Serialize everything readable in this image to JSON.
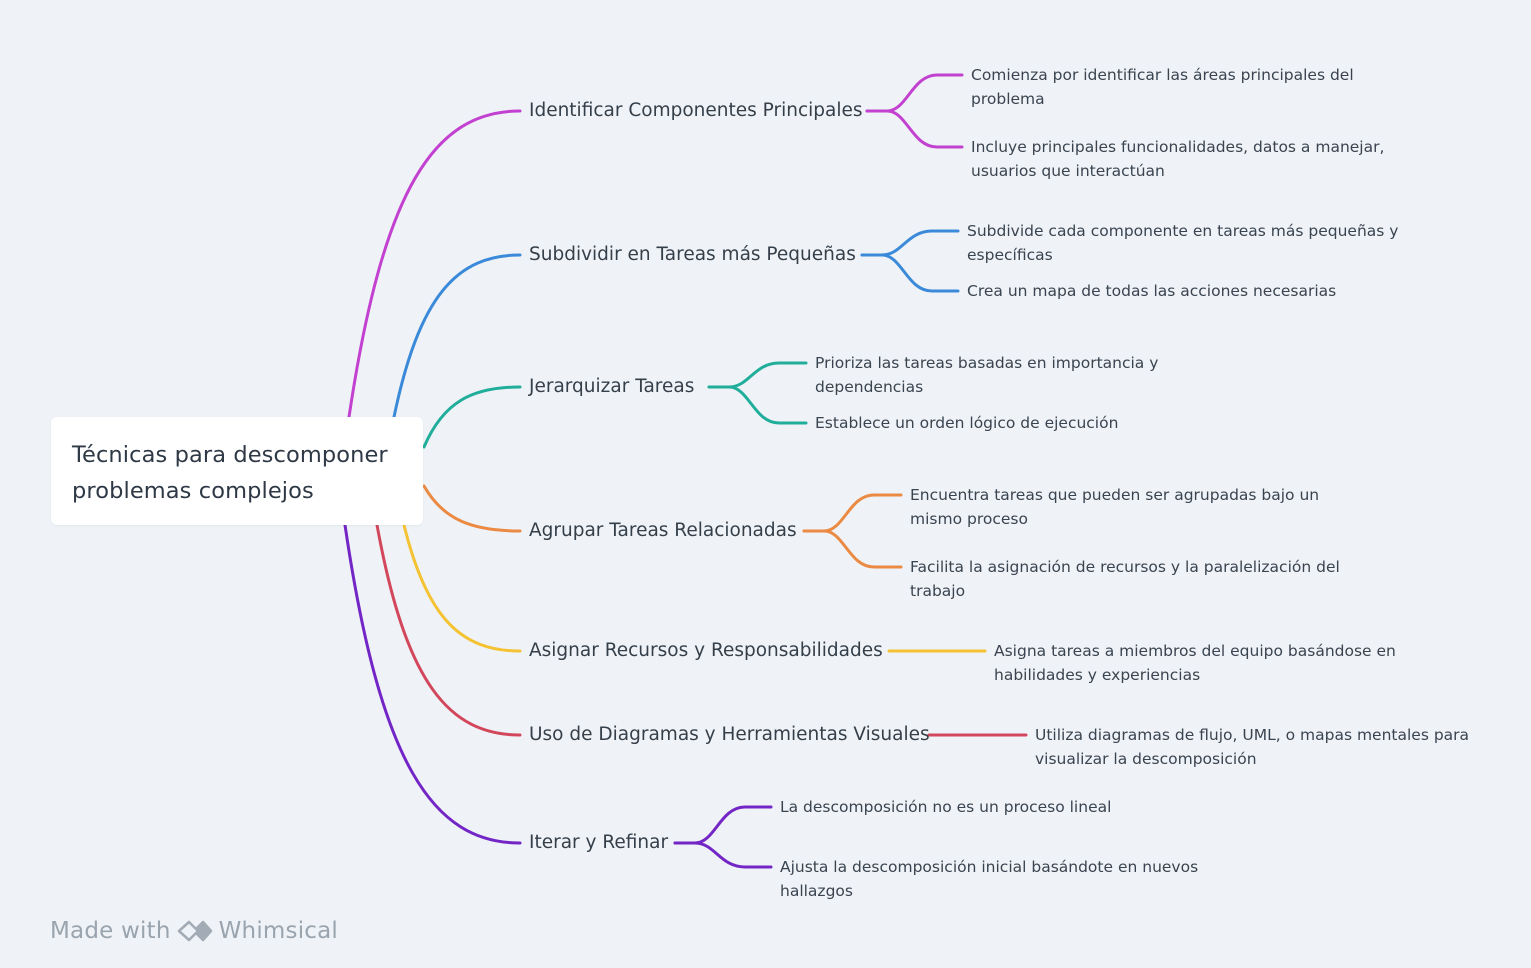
{
  "root": {
    "line1": "Técnicas para descomponer",
    "line2": "problemas complejos"
  },
  "branches": [
    {
      "label": "Identificar Componentes Principales",
      "color": "#c341d0",
      "leaves": [
        [
          "Comienza por identificar las áreas principales del",
          "problema"
        ],
        [
          "Incluye principales funcionalidades, datos a manejar,",
          "usuarios que interactúan"
        ]
      ]
    },
    {
      "label": "Subdividir en Tareas más Pequeñas",
      "color": "#3b8ad9",
      "leaves": [
        [
          "Subdivide cada componente en tareas más pequeñas y",
          "específicas"
        ],
        [
          "Crea un mapa de todas las acciones necesarias"
        ]
      ]
    },
    {
      "label": "Jerarquizar Tareas",
      "color": "#20ae9b",
      "leaves": [
        [
          "Prioriza las tareas basadas en importancia y",
          "dependencias"
        ],
        [
          "Establece un orden lógico de ejecución"
        ]
      ]
    },
    {
      "label": "Agrupar Tareas Relacionadas",
      "color": "#eb8a43",
      "leaves": [
        [
          "Encuentra tareas que pueden ser agrupadas bajo un",
          "mismo proceso"
        ],
        [
          "Facilita la asignación de recursos y la paralelización del",
          "trabajo"
        ]
      ]
    },
    {
      "label": "Asignar Recursos y Responsabilidades",
      "color": "#f4c232",
      "leaves": [
        [
          "Asigna tareas a miembros del equipo basándose en",
          "habilidades y experiencias"
        ]
      ]
    },
    {
      "label": "Uso de Diagramas y Herramientas Visuales",
      "color": "#d3475c",
      "leaves": [
        [
          "Utiliza diagramas de flujo, UML, o mapas mentales para",
          "visualizar la descomposición"
        ]
      ]
    },
    {
      "label": "Iterar y Refinar",
      "color": "#7325c6",
      "leaves": [
        [
          "La descomposición no es un proceso lineal"
        ],
        [
          "Ajusta la descomposición inicial basándote en nuevos",
          "hallazgos"
        ]
      ]
    }
  ],
  "footer": {
    "made_with": "Made with",
    "brand": "Whimsical"
  }
}
